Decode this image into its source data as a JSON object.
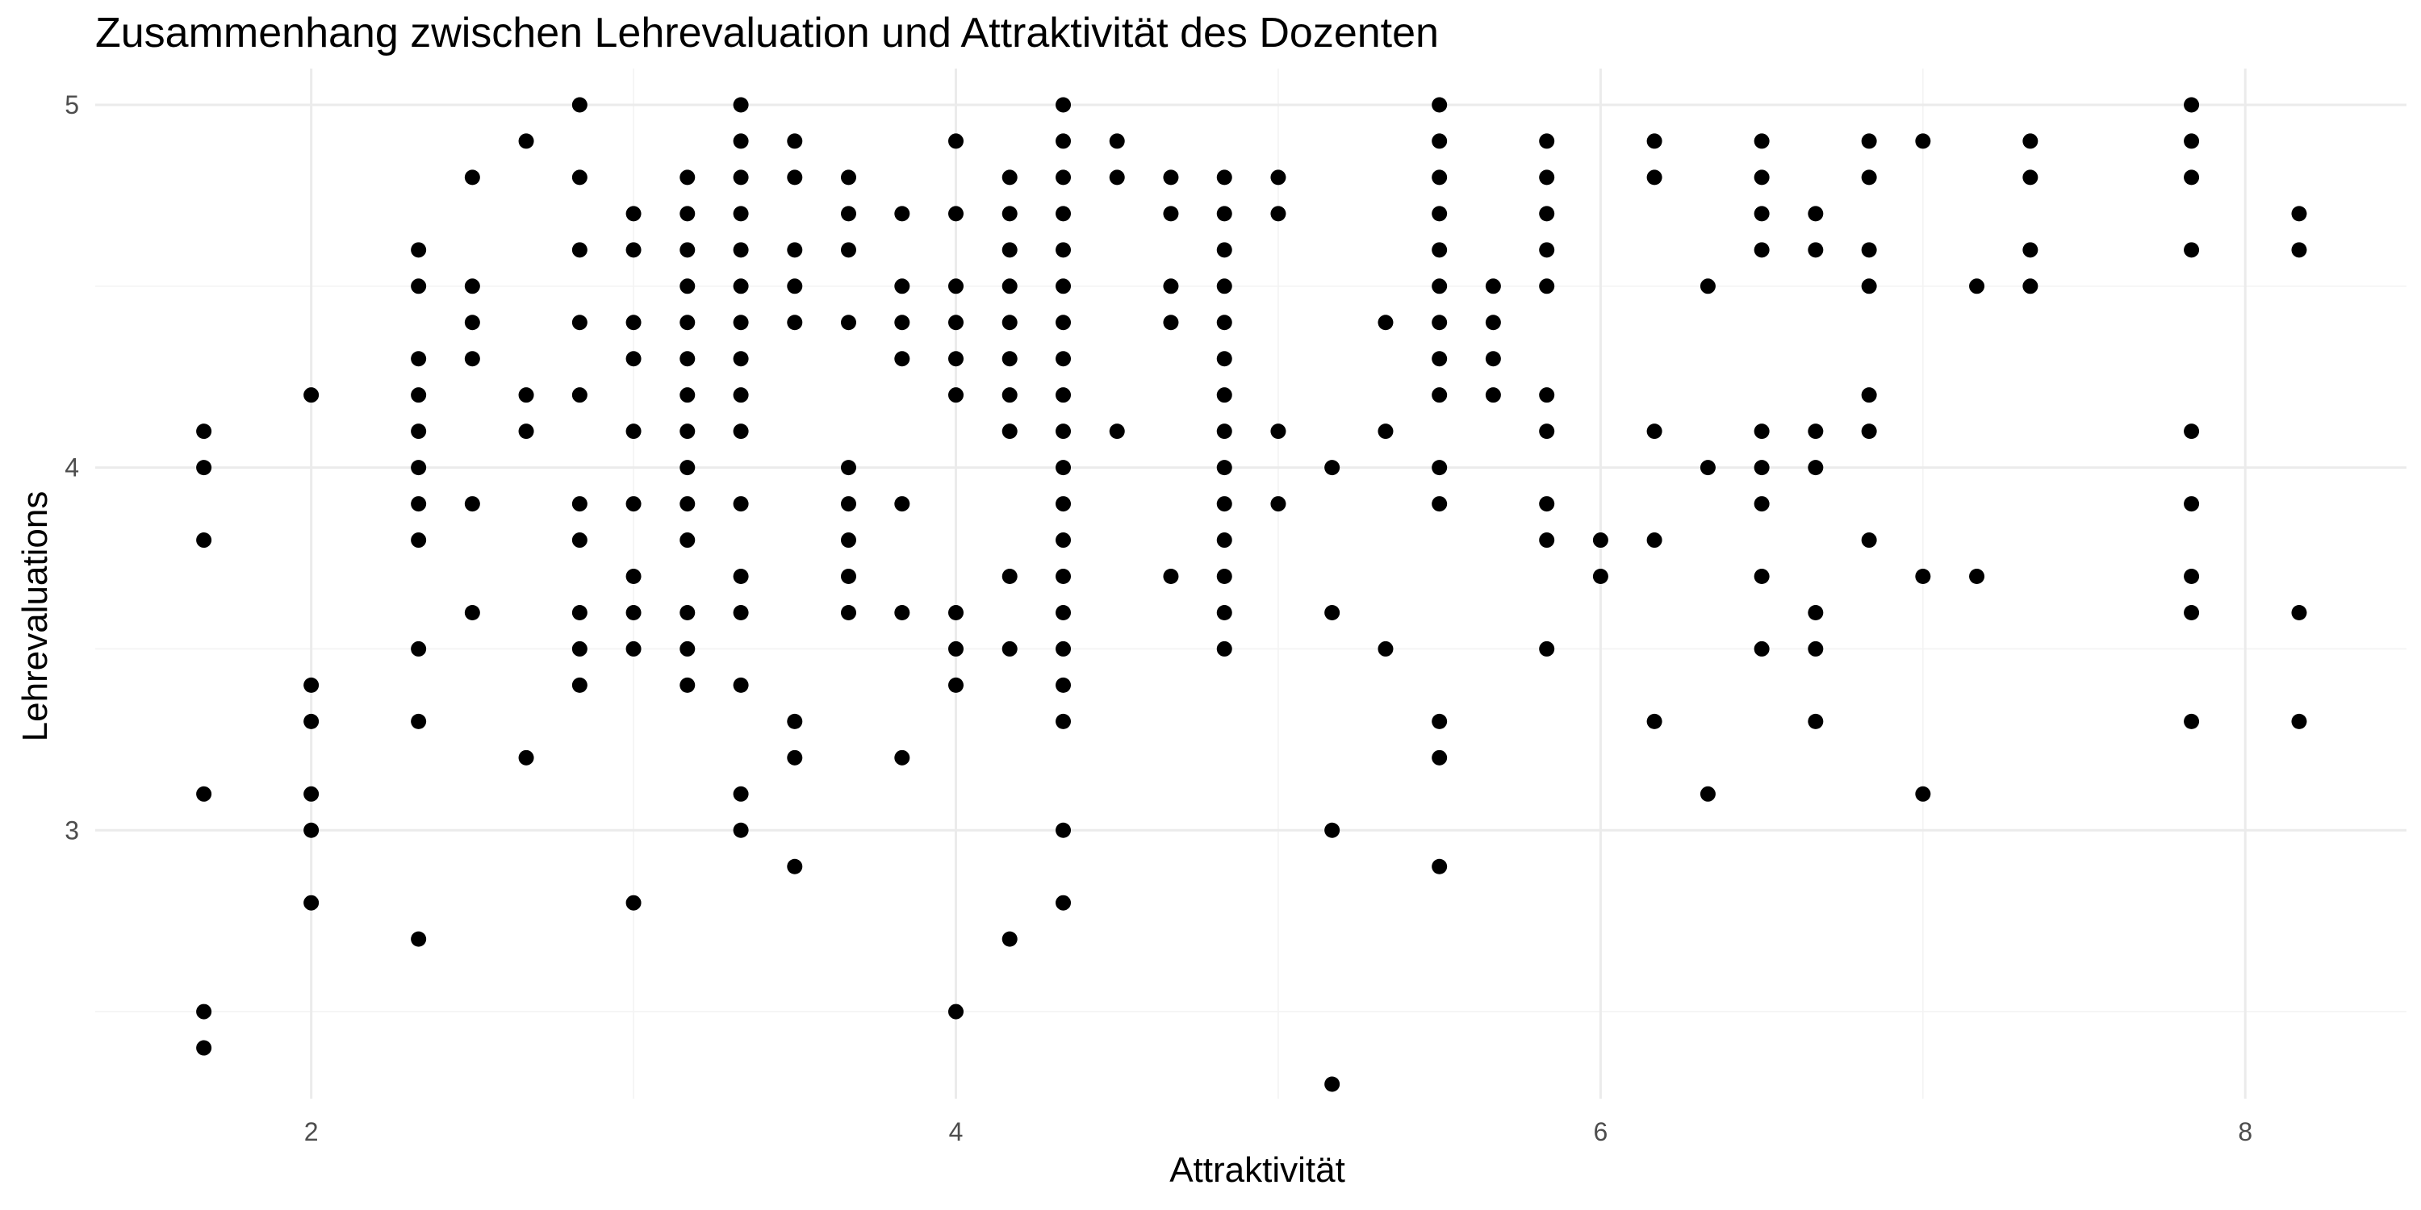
{
  "chart_data": {
    "type": "scatter",
    "title": "Zusammenhang zwischen Lehrevaluation und Attraktivität des Dozenten",
    "xlabel": "Attraktivität",
    "ylabel": "Lehrevaluations",
    "xlim": [
      1.33,
      8.5
    ],
    "ylim": [
      2.26,
      5.1
    ],
    "x_ticks": [
      2,
      4,
      6,
      8
    ],
    "y_ticks": [
      3,
      4,
      5
    ],
    "x_tick_labels": [
      "2",
      "4",
      "6",
      "8"
    ],
    "y_tick_labels": [
      "3",
      "4",
      "5"
    ],
    "point_color": "#000000",
    "grid": true,
    "points": [
      [
        1.667,
        4.1
      ],
      [
        1.667,
        4.0
      ],
      [
        1.667,
        3.8
      ],
      [
        1.667,
        3.1
      ],
      [
        1.667,
        2.5
      ],
      [
        1.667,
        2.4
      ],
      [
        2.0,
        4.2
      ],
      [
        2.0,
        3.4
      ],
      [
        2.0,
        3.3
      ],
      [
        2.0,
        3.1
      ],
      [
        2.0,
        3.0
      ],
      [
        2.0,
        2.8
      ],
      [
        2.333,
        4.6
      ],
      [
        2.333,
        4.5
      ],
      [
        2.333,
        4.3
      ],
      [
        2.333,
        4.2
      ],
      [
        2.333,
        4.1
      ],
      [
        2.333,
        4.0
      ],
      [
        2.333,
        3.9
      ],
      [
        2.333,
        3.8
      ],
      [
        2.333,
        3.5
      ],
      [
        2.333,
        3.3
      ],
      [
        2.333,
        2.7
      ],
      [
        2.5,
        4.8
      ],
      [
        2.5,
        4.5
      ],
      [
        2.5,
        4.4
      ],
      [
        2.5,
        4.3
      ],
      [
        2.5,
        3.9
      ],
      [
        2.5,
        3.6
      ],
      [
        2.667,
        4.9
      ],
      [
        2.667,
        4.2
      ],
      [
        2.667,
        4.1
      ],
      [
        2.667,
        3.2
      ],
      [
        2.833,
        5.0
      ],
      [
        2.833,
        4.8
      ],
      [
        2.833,
        4.6
      ],
      [
        2.833,
        4.4
      ],
      [
        2.833,
        4.2
      ],
      [
        2.833,
        3.9
      ],
      [
        2.833,
        3.8
      ],
      [
        2.833,
        3.6
      ],
      [
        2.833,
        3.5
      ],
      [
        2.833,
        3.4
      ],
      [
        3.0,
        4.7
      ],
      [
        3.0,
        4.6
      ],
      [
        3.0,
        4.4
      ],
      [
        3.0,
        4.3
      ],
      [
        3.0,
        4.1
      ],
      [
        3.0,
        3.9
      ],
      [
        3.0,
        3.7
      ],
      [
        3.0,
        3.6
      ],
      [
        3.0,
        3.5
      ],
      [
        3.0,
        2.8
      ],
      [
        3.167,
        4.8
      ],
      [
        3.167,
        4.7
      ],
      [
        3.167,
        4.6
      ],
      [
        3.167,
        4.5
      ],
      [
        3.167,
        4.4
      ],
      [
        3.167,
        4.3
      ],
      [
        3.167,
        4.2
      ],
      [
        3.167,
        4.1
      ],
      [
        3.167,
        4.0
      ],
      [
        3.167,
        3.9
      ],
      [
        3.167,
        3.8
      ],
      [
        3.167,
        3.6
      ],
      [
        3.167,
        3.5
      ],
      [
        3.167,
        3.4
      ],
      [
        3.333,
        5.0
      ],
      [
        3.333,
        4.9
      ],
      [
        3.333,
        4.8
      ],
      [
        3.333,
        4.7
      ],
      [
        3.333,
        4.6
      ],
      [
        3.333,
        4.5
      ],
      [
        3.333,
        4.4
      ],
      [
        3.333,
        4.3
      ],
      [
        3.333,
        4.2
      ],
      [
        3.333,
        4.1
      ],
      [
        3.333,
        3.9
      ],
      [
        3.333,
        3.7
      ],
      [
        3.333,
        3.6
      ],
      [
        3.333,
        3.4
      ],
      [
        3.333,
        3.1
      ],
      [
        3.333,
        3.0
      ],
      [
        3.5,
        4.9
      ],
      [
        3.5,
        4.8
      ],
      [
        3.5,
        4.6
      ],
      [
        3.5,
        4.5
      ],
      [
        3.5,
        4.4
      ],
      [
        3.5,
        3.3
      ],
      [
        3.5,
        3.2
      ],
      [
        3.5,
        2.9
      ],
      [
        3.667,
        4.8
      ],
      [
        3.667,
        4.7
      ],
      [
        3.667,
        4.6
      ],
      [
        3.667,
        4.4
      ],
      [
        3.667,
        4.0
      ],
      [
        3.667,
        3.9
      ],
      [
        3.667,
        3.8
      ],
      [
        3.667,
        3.7
      ],
      [
        3.667,
        3.6
      ],
      [
        3.833,
        4.7
      ],
      [
        3.833,
        4.5
      ],
      [
        3.833,
        4.4
      ],
      [
        3.833,
        4.3
      ],
      [
        3.833,
        3.9
      ],
      [
        3.833,
        3.6
      ],
      [
        3.833,
        3.2
      ],
      [
        4.0,
        4.9
      ],
      [
        4.0,
        4.7
      ],
      [
        4.0,
        4.5
      ],
      [
        4.0,
        4.4
      ],
      [
        4.0,
        4.3
      ],
      [
        4.0,
        4.2
      ],
      [
        4.0,
        3.6
      ],
      [
        4.0,
        3.5
      ],
      [
        4.0,
        3.4
      ],
      [
        4.0,
        2.5
      ],
      [
        4.167,
        4.8
      ],
      [
        4.167,
        4.7
      ],
      [
        4.167,
        4.6
      ],
      [
        4.167,
        4.5
      ],
      [
        4.167,
        4.4
      ],
      [
        4.167,
        4.3
      ],
      [
        4.167,
        4.2
      ],
      [
        4.167,
        4.1
      ],
      [
        4.167,
        3.7
      ],
      [
        4.167,
        3.5
      ],
      [
        4.167,
        2.7
      ],
      [
        4.333,
        5.0
      ],
      [
        4.333,
        4.9
      ],
      [
        4.333,
        4.8
      ],
      [
        4.333,
        4.7
      ],
      [
        4.333,
        4.6
      ],
      [
        4.333,
        4.5
      ],
      [
        4.333,
        4.4
      ],
      [
        4.333,
        4.3
      ],
      [
        4.333,
        4.2
      ],
      [
        4.333,
        4.1
      ],
      [
        4.333,
        4.0
      ],
      [
        4.333,
        3.9
      ],
      [
        4.333,
        3.8
      ],
      [
        4.333,
        3.7
      ],
      [
        4.333,
        3.6
      ],
      [
        4.333,
        3.5
      ],
      [
        4.333,
        3.4
      ],
      [
        4.333,
        3.3
      ],
      [
        4.333,
        3.0
      ],
      [
        4.333,
        2.8
      ],
      [
        4.5,
        4.9
      ],
      [
        4.5,
        4.8
      ],
      [
        4.5,
        4.1
      ],
      [
        4.667,
        4.8
      ],
      [
        4.667,
        4.7
      ],
      [
        4.667,
        4.5
      ],
      [
        4.667,
        4.4
      ],
      [
        4.667,
        3.7
      ],
      [
        4.833,
        4.8
      ],
      [
        4.833,
        4.7
      ],
      [
        4.833,
        4.6
      ],
      [
        4.833,
        4.5
      ],
      [
        4.833,
        4.4
      ],
      [
        4.833,
        4.3
      ],
      [
        4.833,
        4.2
      ],
      [
        4.833,
        4.1
      ],
      [
        4.833,
        4.0
      ],
      [
        4.833,
        3.9
      ],
      [
        4.833,
        3.8
      ],
      [
        4.833,
        3.7
      ],
      [
        4.833,
        3.6
      ],
      [
        4.833,
        3.5
      ],
      [
        5.0,
        4.8
      ],
      [
        5.0,
        4.7
      ],
      [
        5.0,
        4.1
      ],
      [
        5.0,
        3.9
      ],
      [
        5.167,
        4.0
      ],
      [
        5.167,
        3.6
      ],
      [
        5.167,
        3.0
      ],
      [
        5.167,
        2.3
      ],
      [
        5.333,
        4.4
      ],
      [
        5.333,
        4.1
      ],
      [
        5.333,
        3.5
      ],
      [
        5.5,
        5.0
      ],
      [
        5.5,
        4.9
      ],
      [
        5.5,
        4.8
      ],
      [
        5.5,
        4.7
      ],
      [
        5.5,
        4.6
      ],
      [
        5.5,
        4.5
      ],
      [
        5.5,
        4.4
      ],
      [
        5.5,
        4.3
      ],
      [
        5.5,
        4.2
      ],
      [
        5.5,
        4.0
      ],
      [
        5.5,
        3.9
      ],
      [
        5.5,
        3.3
      ],
      [
        5.5,
        3.2
      ],
      [
        5.5,
        2.9
      ],
      [
        5.667,
        4.5
      ],
      [
        5.667,
        4.4
      ],
      [
        5.667,
        4.3
      ],
      [
        5.667,
        4.2
      ],
      [
        5.833,
        4.9
      ],
      [
        5.833,
        4.8
      ],
      [
        5.833,
        4.7
      ],
      [
        5.833,
        4.6
      ],
      [
        5.833,
        4.5
      ],
      [
        5.833,
        4.2
      ],
      [
        5.833,
        4.1
      ],
      [
        5.833,
        3.9
      ],
      [
        5.833,
        3.8
      ],
      [
        5.833,
        3.5
      ],
      [
        6.0,
        3.8
      ],
      [
        6.0,
        3.7
      ],
      [
        6.167,
        4.9
      ],
      [
        6.167,
        4.8
      ],
      [
        6.167,
        4.1
      ],
      [
        6.167,
        3.8
      ],
      [
        6.167,
        3.3
      ],
      [
        6.333,
        4.5
      ],
      [
        6.333,
        4.0
      ],
      [
        6.333,
        3.1
      ],
      [
        6.5,
        4.9
      ],
      [
        6.5,
        4.8
      ],
      [
        6.5,
        4.7
      ],
      [
        6.5,
        4.6
      ],
      [
        6.5,
        4.1
      ],
      [
        6.5,
        4.0
      ],
      [
        6.5,
        3.9
      ],
      [
        6.5,
        3.7
      ],
      [
        6.5,
        3.5
      ],
      [
        6.667,
        4.7
      ],
      [
        6.667,
        4.6
      ],
      [
        6.667,
        4.1
      ],
      [
        6.667,
        4.0
      ],
      [
        6.667,
        3.6
      ],
      [
        6.667,
        3.5
      ],
      [
        6.667,
        3.3
      ],
      [
        6.833,
        4.9
      ],
      [
        6.833,
        4.8
      ],
      [
        6.833,
        4.6
      ],
      [
        6.833,
        4.5
      ],
      [
        6.833,
        4.2
      ],
      [
        6.833,
        4.1
      ],
      [
        6.833,
        3.8
      ],
      [
        7.0,
        4.9
      ],
      [
        7.0,
        3.7
      ],
      [
        7.0,
        3.1
      ],
      [
        7.167,
        4.5
      ],
      [
        7.167,
        3.7
      ],
      [
        7.333,
        4.9
      ],
      [
        7.333,
        4.8
      ],
      [
        7.333,
        4.6
      ],
      [
        7.333,
        4.5
      ],
      [
        7.833,
        5.0
      ],
      [
        7.833,
        4.9
      ],
      [
        7.833,
        4.8
      ],
      [
        7.833,
        4.6
      ],
      [
        7.833,
        4.1
      ],
      [
        7.833,
        3.9
      ],
      [
        7.833,
        3.7
      ],
      [
        7.833,
        3.6
      ],
      [
        7.833,
        3.3
      ],
      [
        8.167,
        4.7
      ],
      [
        8.167,
        4.6
      ],
      [
        8.167,
        3.6
      ],
      [
        8.167,
        3.3
      ]
    ]
  }
}
